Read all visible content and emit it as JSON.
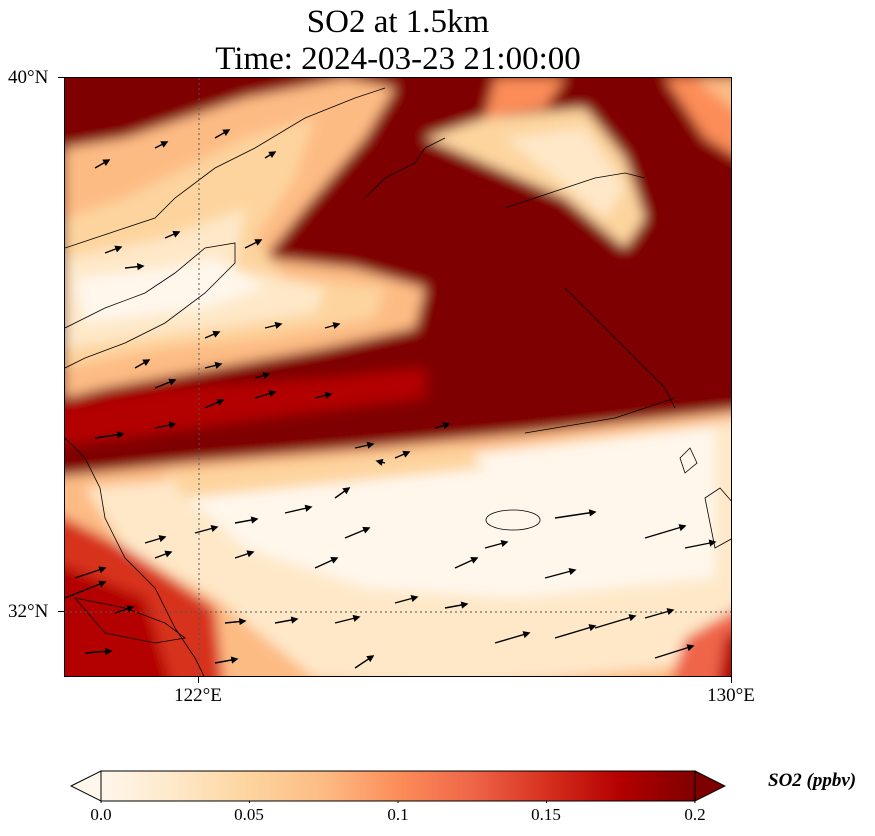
{
  "title": {
    "line1": "SO2 at 1.5km",
    "line2": "Time: 2024-03-23 21:00:00"
  },
  "map": {
    "lat_labels": [
      "40°N",
      "32°N"
    ],
    "lon_labels": [
      "122°E",
      "130°E"
    ],
    "lon_range": [
      120.0,
      130.0
    ],
    "lat_range": [
      31.0,
      40.0
    ],
    "gridlines": "dotted at 122°E and 32°N",
    "field": "SO2 concentration with wind vectors",
    "colormap": "OrRd",
    "coastlines": true
  },
  "colorbar": {
    "label": "SO2 (ppbv)",
    "ticks": [
      "0.0",
      "0.05",
      "0.1",
      "0.15",
      "0.2"
    ],
    "min": 0.0,
    "max": 0.2,
    "extend": "both",
    "colors": [
      "#fff7ec",
      "#fee8c8",
      "#fdd49e",
      "#fdbb84",
      "#fc8d59",
      "#ef6548",
      "#d7301f",
      "#b30000",
      "#7f0000"
    ]
  }
}
